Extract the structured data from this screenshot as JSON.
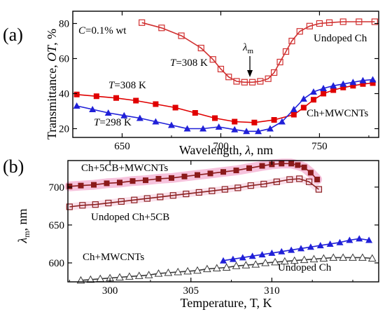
{
  "chart_data": [
    {
      "panel_label": "(a)",
      "type": "line",
      "xlabel": [
        "Wavelength, ",
        "λ",
        ", nm"
      ],
      "ylabel": [
        "Transmittance, ",
        "OT",
        ", %"
      ],
      "xlim": [
        625,
        780
      ],
      "ylim": [
        15,
        87
      ],
      "xticks": [
        650,
        700,
        750
      ],
      "yticks": [
        20,
        40,
        60,
        80
      ],
      "grid": false,
      "annotations": {
        "concentration": [
          "C",
          "=0.1% wt"
        ],
        "lambda_m": [
          "λ",
          "m"
        ],
        "t308_top": [
          "T",
          "=308 K"
        ],
        "t308_mid": [
          "T",
          "=308 K"
        ],
        "t298": [
          "T",
          "=298 K"
        ],
        "series_label_undoped": "Undoped Ch",
        "series_label_mwcnt": "Ch+MWCNTs"
      },
      "colors": {
        "undoped": "#e00000",
        "red": "#e00000",
        "blue": "#2020d8"
      },
      "series": [
        {
          "name": "Undoped Ch",
          "marker": "open-square",
          "color": "#d03030",
          "x": [
            660,
            670,
            680,
            690,
            696,
            700,
            704,
            708,
            712,
            716,
            720,
            724,
            727,
            730,
            733,
            736,
            740,
            745,
            750,
            755,
            762,
            770,
            778
          ],
          "y": [
            80.5,
            77.5,
            73,
            66,
            59.5,
            54,
            49.5,
            47,
            46.5,
            46.5,
            47,
            48.5,
            52,
            58,
            64,
            70,
            75.5,
            78.5,
            80,
            80.5,
            81,
            81,
            81
          ]
        },
        {
          "name": "T=308 K",
          "marker": "filled-square",
          "color": "#e00000",
          "x": [
            627,
            637,
            647,
            657,
            667,
            677,
            687,
            697,
            707,
            717,
            727,
            737,
            742,
            747,
            752,
            757,
            762,
            767,
            772,
            777
          ],
          "y": [
            39.5,
            38.5,
            37.5,
            36,
            34,
            32,
            29,
            26,
            24,
            23.5,
            25,
            28,
            32,
            36.5,
            40,
            42,
            43.5,
            44.5,
            45.5,
            46
          ]
        },
        {
          "name": "T=298 K",
          "marker": "filled-triangle",
          "color": "#2020d8",
          "x": [
            627,
            635,
            643,
            651,
            659,
            667,
            675,
            683,
            691,
            699,
            707,
            713,
            719,
            725,
            731,
            737,
            742,
            747,
            752,
            757,
            762,
            767,
            772,
            777
          ],
          "y": [
            33,
            31,
            29,
            27.5,
            26,
            24,
            22,
            20,
            20,
            21,
            19.5,
            18.5,
            18.5,
            20,
            24,
            31,
            37,
            41,
            43,
            44.5,
            45.5,
            46.5,
            47.5,
            48
          ]
        }
      ]
    },
    {
      "panel_label": "(b)",
      "type": "line",
      "xlabel": [
        "Temperature, T, K"
      ],
      "ylabel": [
        "λ",
        "m",
        ", nm"
      ],
      "xlim": [
        297.4,
        316.6
      ],
      "ylim": [
        575,
        735
      ],
      "xticks": [
        300,
        305,
        310
      ],
      "yticks": [
        600,
        650,
        700
      ],
      "grid": false,
      "series": [
        {
          "name": "Ch+5CB+MWCNTs",
          "marker": "filled-square",
          "color": "#8b1a1a",
          "x": [
            297.5,
            298.2,
            299,
            299.8,
            300.6,
            301.4,
            302.2,
            303,
            303.8,
            304.6,
            305.4,
            306.2,
            307,
            307.8,
            308.6,
            309.4,
            310,
            310.6,
            311.2,
            311.6,
            312,
            312.4,
            312.8
          ],
          "y": [
            701,
            702,
            703,
            705,
            706,
            708,
            709,
            711,
            712,
            714,
            716,
            718,
            720,
            722,
            725,
            728,
            730,
            731,
            731,
            729,
            726,
            719,
            710
          ]
        },
        {
          "name": "Undoped Ch+5CB",
          "marker": "open-square",
          "color": "#8b2020",
          "x": [
            297.5,
            298.3,
            299.1,
            299.9,
            300.7,
            301.5,
            302.3,
            303.1,
            303.9,
            304.7,
            305.5,
            306.3,
            307.1,
            307.9,
            308.7,
            309.5,
            310.3,
            311.1,
            311.7,
            312.3,
            312.9
          ],
          "y": [
            674,
            676,
            677,
            679,
            681,
            683,
            685,
            687,
            689,
            691,
            693,
            695,
            697,
            699,
            702,
            704,
            707,
            710,
            711,
            707,
            697
          ]
        },
        {
          "name": "Ch+MWCNTs",
          "marker": "filled-triangle",
          "color": "#2020d8",
          "x": [
            307,
            307.6,
            308.2,
            308.8,
            309.4,
            310,
            310.6,
            311.2,
            311.8,
            312.4,
            313,
            313.6,
            314.2,
            314.8,
            315.4,
            316
          ],
          "y": [
            603,
            605,
            607,
            609,
            611,
            613,
            615,
            617,
            619,
            621,
            623,
            625,
            627,
            630,
            632,
            630
          ]
        },
        {
          "name": "Undoped Ch",
          "marker": "open-triangle",
          "color": "#3a3a3a",
          "x": [
            298.2,
            298.8,
            299.4,
            300,
            300.6,
            301.2,
            301.8,
            302.4,
            303,
            303.6,
            304.2,
            304.8,
            305.4,
            306,
            306.6,
            307.2,
            307.8,
            308.4,
            309,
            309.6,
            310.2,
            310.8,
            311.4,
            312,
            312.6,
            313.2,
            313.8,
            314.4,
            315,
            315.6,
            316.2
          ],
          "y": [
            577,
            578,
            579,
            580,
            581,
            582,
            583,
            584,
            586,
            587,
            588,
            589,
            590,
            592,
            593,
            594,
            596,
            597,
            598,
            600,
            601,
            602,
            603,
            604,
            605,
            606,
            607,
            607,
            607,
            607,
            606
          ]
        }
      ]
    }
  ]
}
